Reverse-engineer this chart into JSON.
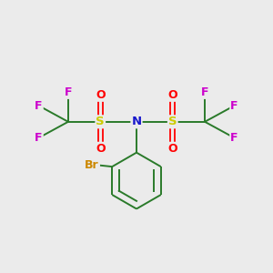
{
  "background_color": "#ebebeb",
  "atom_colors": {
    "C": "#2a7a2a",
    "N": "#1818cc",
    "S": "#cccc00",
    "O": "#ff0000",
    "F": "#cc00cc",
    "Br": "#cc8800"
  },
  "bond_color": "#2a7a2a",
  "figsize": [
    3.0,
    3.0
  ],
  "dpi": 100
}
